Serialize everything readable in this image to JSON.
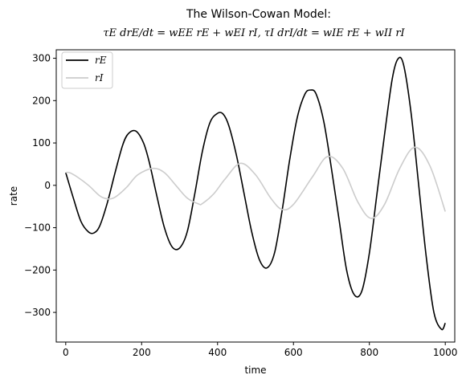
{
  "chart_data": {
    "type": "line",
    "title": "The Wilson-Cowan Model:",
    "subtitle": "τE drE/dt = wEE rE + wEI rI, τI drI/dt = wIE rE + wII rI",
    "xlabel": "time",
    "ylabel": "rate",
    "xlim": [
      -25,
      1025
    ],
    "ylim": [
      -370,
      320
    ],
    "xticks": [
      0,
      200,
      400,
      600,
      800,
      1000
    ],
    "yticks": [
      -300,
      -200,
      -100,
      0,
      100,
      200,
      300
    ],
    "ytick_labels": [
      "−300",
      "−200",
      "−100",
      "0",
      "100",
      "200",
      "300"
    ],
    "legend_position": "top-left",
    "grid": false,
    "series": [
      {
        "name": "rE",
        "color": "#000000",
        "x": [
          0,
          20,
          40,
          60,
          75,
          90,
          110,
          130,
          150,
          165,
          185,
          205,
          220,
          240,
          260,
          280,
          300,
          320,
          340,
          360,
          380,
          400,
          415,
          430,
          450,
          470,
          490,
          510,
          530,
          550,
          570,
          590,
          610,
          630,
          645,
          660,
          680,
          700,
          720,
          740,
          760,
          780,
          800,
          820,
          840,
          860,
          875,
          890,
          910,
          930,
          950,
          970,
          990,
          1000
        ],
        "y": [
          30,
          -30,
          -85,
          -110,
          -112,
          -95,
          -40,
          30,
          95,
          122,
          128,
          100,
          55,
          -25,
          -100,
          -145,
          -148,
          -110,
          -20,
          80,
          148,
          170,
          168,
          140,
          70,
          -20,
          -110,
          -175,
          -195,
          -160,
          -60,
          60,
          160,
          215,
          225,
          215,
          150,
          40,
          -80,
          -200,
          -258,
          -250,
          -160,
          -20,
          120,
          250,
          298,
          285,
          170,
          0,
          -170,
          -300,
          -340,
          -325
        ]
      },
      {
        "name": "rI",
        "color": "#cccccc",
        "x": [
          0,
          10,
          30,
          60,
          90,
          110,
          130,
          160,
          190,
          230,
          260,
          290,
          320,
          350,
          360,
          390,
          420,
          460,
          500,
          540,
          570,
          600,
          650,
          690,
          730,
          770,
          805,
          840,
          880,
          920,
          960,
          1000
        ],
        "y": [
          30,
          30,
          20,
          0,
          -25,
          -32,
          -28,
          -5,
          25,
          40,
          30,
          0,
          -30,
          -44,
          -43,
          -20,
          15,
          52,
          25,
          -30,
          -57,
          -45,
          20,
          68,
          40,
          -40,
          -78,
          -45,
          40,
          90,
          45,
          -62
        ]
      }
    ]
  }
}
